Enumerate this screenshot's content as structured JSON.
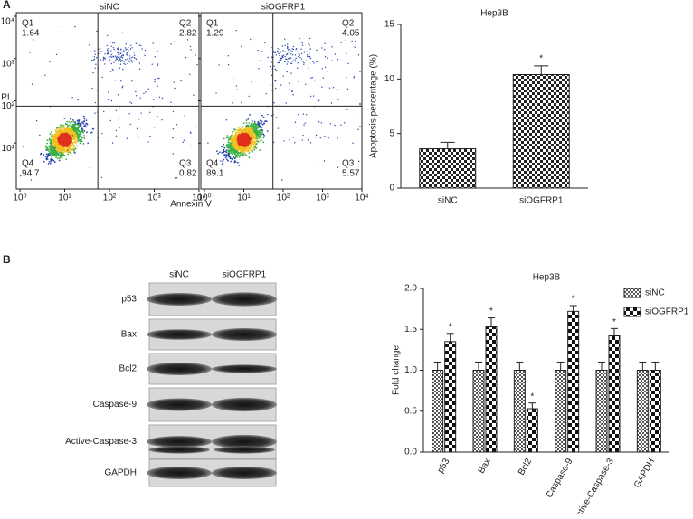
{
  "panels": [
    "A",
    "B"
  ],
  "flow_cytometry": {
    "x_label": "Annexin V",
    "y_label": "PI",
    "xlim": [
      1,
      10000
    ],
    "ylim": [
      1,
      10000
    ],
    "log_scale": true,
    "xticks": [
      {
        "value": 1,
        "label": "10⁰"
      },
      {
        "value": 10,
        "label": "10¹"
      },
      {
        "value": 100,
        "label": "10²"
      },
      {
        "value": 1000,
        "label": "10³"
      },
      {
        "value": 10000,
        "label": "10⁴"
      }
    ],
    "yticks": [
      {
        "value": 10,
        "label": "10¹"
      },
      {
        "value": 100,
        "label": "10²"
      },
      {
        "value": 1000,
        "label": "10³"
      },
      {
        "value": 10000,
        "label": "10⁴"
      }
    ],
    "plots": [
      {
        "title": "siNC",
        "quadrants": [
          {
            "name": "Q1",
            "value": 1.64
          },
          {
            "name": "Q2",
            "value": 2.82
          },
          {
            "name": "Q3",
            "value": 0.82
          },
          {
            "name": "Q4",
            "value": 94.7
          }
        ]
      },
      {
        "title": "siOGFRP1",
        "quadrants": [
          {
            "name": "Q1",
            "value": 1.29
          },
          {
            "name": "Q2",
            "value": 4.05
          },
          {
            "name": "Q3",
            "value": 5.57
          },
          {
            "name": "Q4",
            "value": 89.1
          }
        ]
      }
    ]
  },
  "chart_data": [
    {
      "type": "bar",
      "title": "Hep3B",
      "y_label": "Apoptosis percentage (%)",
      "categories": [
        "siNC",
        "siOGFRP1"
      ],
      "values": [
        3.6,
        10.4
      ],
      "errors": [
        0.6,
        0.8
      ],
      "significance": [
        null,
        "*"
      ],
      "ylim": [
        0,
        15
      ],
      "yticks": [
        0,
        5,
        10,
        15
      ]
    },
    {
      "type": "grouped_bar",
      "title": "Hep3B",
      "y_label": "Fold change",
      "categories": [
        "p53",
        "Bax",
        "Bcl2",
        "Caspase-9",
        "Active-Caspase-3",
        "GAPDH"
      ],
      "series": [
        {
          "name": "siNC",
          "values": [
            1,
            1,
            1,
            1,
            1,
            1
          ],
          "errors": [
            0.1,
            0.1,
            0.1,
            0.1,
            0.1,
            0.1
          ],
          "significance": [
            null,
            null,
            null,
            null,
            null,
            null
          ]
        },
        {
          "name": "siOGFRP1",
          "values": [
            1.35,
            1.53,
            0.53,
            1.72,
            1.42,
            1.0
          ],
          "errors": [
            0.1,
            0.11,
            0.07,
            0.07,
            0.09,
            0.1
          ],
          "significance": [
            "*",
            "*",
            "*",
            "*",
            "*",
            null
          ]
        }
      ],
      "ylim": [
        0,
        2
      ],
      "yticks": [
        {
          "value": 0,
          "label": "0.0"
        },
        {
          "value": 0.5,
          "label": "0.5"
        },
        {
          "value": 1,
          "label": "1.0"
        },
        {
          "value": 1.5,
          "label": "1.5"
        },
        {
          "value": 2,
          "label": "2.0"
        }
      ],
      "legend": "top-right"
    }
  ],
  "western_blot": {
    "columns": [
      "siNC",
      "siOGFRP1"
    ],
    "rows": [
      "p53",
      "Bax",
      "Bcl2",
      "Caspase-9",
      "Active-Caspase-3",
      "GAPDH"
    ]
  }
}
